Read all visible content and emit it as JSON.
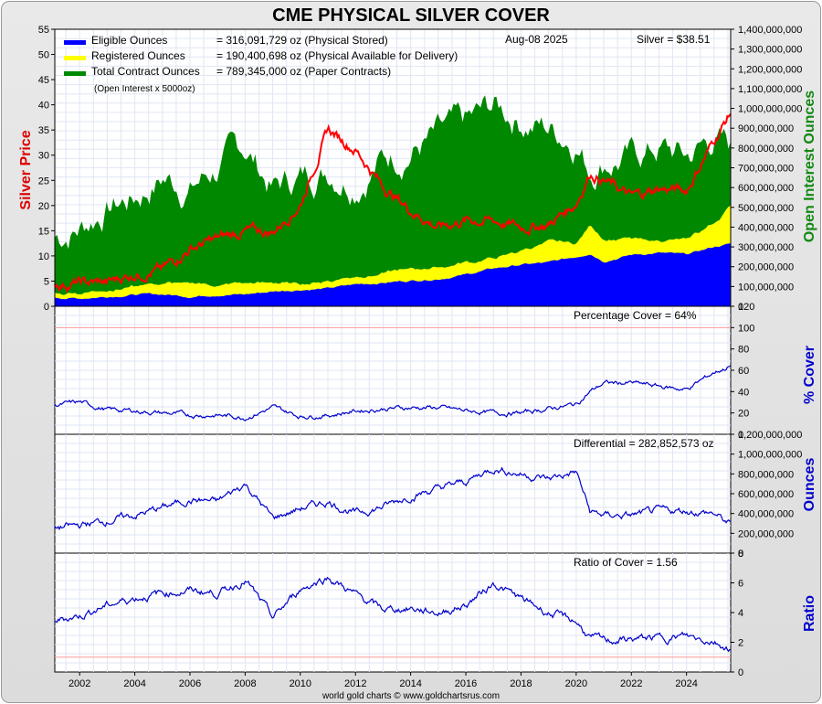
{
  "title": "CME PHYSICAL SILVER COVER",
  "date_label": "Aug-08  2025",
  "price_label": "Silver = $38.51",
  "footer": "world gold charts © www.goldchartsrus.com",
  "legend": [
    {
      "name": "Eligible Ounces",
      "value": "= 316,091,729 oz (Physical Stored)",
      "color": "#0000ff"
    },
    {
      "name": "Registered Ounces",
      "value": "= 190,400,698 oz (Physical Available for Delivery)",
      "color": "#ffff00"
    },
    {
      "name": "Total Contract Ounces",
      "value": "= 789,345,000 oz (Paper Contracts)",
      "color": "#008800"
    }
  ],
  "legend_note": "(Open Interest x 5000oz)",
  "axis_labels": {
    "left_top": "Silver Price",
    "right_top": "Open Interest Ounces",
    "right_pct": "% Cover",
    "right_diff": "Ounces",
    "right_ratio": "Ratio"
  },
  "panel_labels": {
    "pct": "Percentage Cover = 64%",
    "diff": "Differential = 282,852,573 oz",
    "ratio": "Ratio of Cover = 1.56"
  },
  "colors": {
    "price": "#ff0000",
    "eligible": "#0000ff",
    "registered": "#ffff00",
    "open_interest": "#008800",
    "line": "#0000cc",
    "ref": "#ff9999"
  },
  "chart_data": [
    {
      "type": "area",
      "panel": "top",
      "x_ticks": [
        "2002",
        "2004",
        "2006",
        "2008",
        "2010",
        "2012",
        "2014",
        "2016",
        "2018",
        "2020",
        "2022",
        "2024"
      ],
      "left_ticks": [
        "0",
        "5",
        "10",
        "15",
        "20",
        "25",
        "30",
        "35",
        "40",
        "45",
        "50",
        "55"
      ],
      "right_ticks": [
        "0",
        "100,000,000",
        "200,000,000",
        "300,000,000",
        "400,000,000",
        "500,000,000",
        "600,000,000",
        "700,000,000",
        "800,000,000",
        "900,000,000",
        "1,000,000,000",
        "1,100,000,000",
        "1,200,000,000",
        "1,300,000,000",
        "1,400,000,000"
      ],
      "ylim_left": [
        0,
        55
      ],
      "ylim_right": [
        0,
        1400000000
      ],
      "x": [
        2001.1,
        2002,
        2003,
        2004,
        2005,
        2006,
        2007,
        2008,
        2009,
        2010,
        2011,
        2012,
        2013,
        2014,
        2015,
        2016,
        2017,
        2018,
        2019,
        2020,
        2020.5,
        2021,
        2022,
        2023,
        2024,
        2025,
        2025.6
      ],
      "series": [
        {
          "name": "Eligible Ounces",
          "values": [
            45,
            40,
            50,
            60,
            60,
            50,
            60,
            60,
            75,
            85,
            90,
            110,
            120,
            130,
            140,
            160,
            190,
            210,
            220,
            250,
            270,
            230,
            260,
            270,
            260,
            300,
            316
          ]
        },
        {
          "name": "Registered Ounces",
          "values": [
            25,
            30,
            40,
            45,
            55,
            70,
            55,
            55,
            45,
            35,
            35,
            40,
            50,
            60,
            65,
            60,
            50,
            70,
            100,
            70,
            150,
            120,
            80,
            60,
            70,
            120,
            190
          ]
        },
        {
          "name": "Total Contract Ounces",
          "values": [
            350,
            400,
            500,
            550,
            650,
            600,
            700,
            800,
            600,
            650,
            700,
            650,
            750,
            800,
            850,
            900,
            1000,
            950,
            900,
            850,
            700,
            750,
            750,
            800,
            750,
            850,
            789
          ]
        },
        {
          "name": "Silver Price",
          "values": [
            4.4,
            4.6,
            4.7,
            6.5,
            7.2,
            11.5,
            13.4,
            14.9,
            14.7,
            20.2,
            35.0,
            31.2,
            23.8,
            19.1,
            15.7,
            17.1,
            17.0,
            15.7,
            16.2,
            20.5,
            26.5,
            25.1,
            21.7,
            23.4,
            23.0,
            33.0,
            38.5
          ]
        }
      ]
    },
    {
      "type": "line",
      "panel": "percentage",
      "y_ticks": [
        "0",
        "20",
        "40",
        "60",
        "80",
        "100",
        "120"
      ],
      "ylim": [
        0,
        120
      ],
      "x": [
        2001.1,
        2002,
        2003,
        2004,
        2005,
        2006,
        2007,
        2008,
        2009,
        2010,
        2011,
        2012,
        2013,
        2014,
        2015,
        2016,
        2017,
        2018,
        2019,
        2020,
        2020.5,
        2021,
        2022,
        2023,
        2024,
        2025,
        2025.6
      ],
      "values": [
        27,
        30,
        23,
        22,
        20,
        18,
        18,
        16,
        25,
        17,
        18,
        22,
        24,
        25,
        25,
        22,
        20,
        20,
        24,
        28,
        40,
        48,
        48,
        45,
        42,
        58,
        64
      ]
    },
    {
      "type": "line",
      "panel": "differential",
      "y_ticks": [
        "0",
        "200,000,000",
        "400,000,000",
        "600,000,000",
        "800,000,000",
        "1,000,000,000",
        "1,200,000,000"
      ],
      "ylim": [
        0,
        1200000000
      ],
      "x": [
        2001.1,
        2002,
        2003,
        2004,
        2005,
        2006,
        2007,
        2008,
        2009,
        2010,
        2011,
        2012,
        2013,
        2014,
        2015,
        2016,
        2017,
        2018,
        2019,
        2020,
        2020.5,
        2021,
        2022,
        2023,
        2024,
        2025,
        2025.6
      ],
      "values": [
        250,
        280,
        330,
        380,
        460,
        540,
        520,
        700,
        350,
        450,
        520,
        400,
        470,
        580,
        650,
        720,
        860,
        800,
        750,
        820,
        420,
        380,
        380,
        420,
        430,
        400,
        283
      ]
    },
    {
      "type": "line",
      "panel": "ratio",
      "y_ticks": [
        "0",
        "2",
        "4",
        "6",
        "8"
      ],
      "ylim": [
        0,
        8
      ],
      "x": [
        2001.1,
        2002,
        2003,
        2004,
        2005,
        2006,
        2007,
        2008,
        2009,
        2010,
        2011,
        2012,
        2013,
        2014,
        2015,
        2016,
        2017,
        2018,
        2019,
        2020,
        2020.5,
        2021,
        2022,
        2023,
        2024,
        2025,
        2025.6
      ],
      "values": [
        3.5,
        3.8,
        4.5,
        5.0,
        5.3,
        5.5,
        5.3,
        6.2,
        3.6,
        5.6,
        6.4,
        5.2,
        4.2,
        4.3,
        4.0,
        4.5,
        6.0,
        4.9,
        4.0,
        3.4,
        2.3,
        2.1,
        2.2,
        2.3,
        2.4,
        2.1,
        1.56
      ]
    }
  ]
}
